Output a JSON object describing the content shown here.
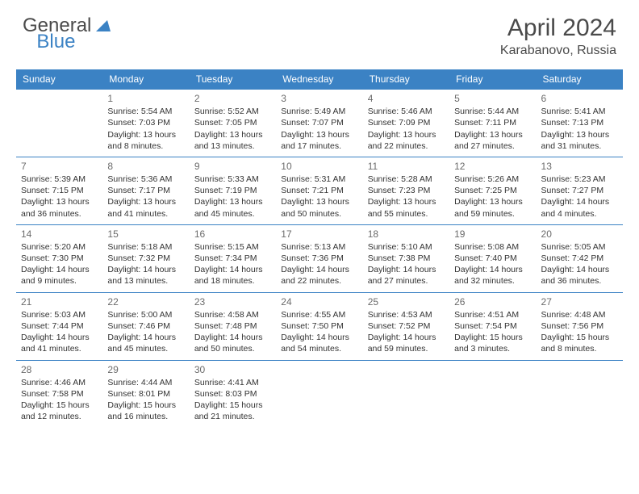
{
  "logo": {
    "general": "General",
    "blue": "Blue"
  },
  "title": "April 2024",
  "location": "Karabanovo, Russia",
  "header_bg": "#3b82c4",
  "header_fg": "#ffffff",
  "border_color": "#3b82c4",
  "day_headers": [
    "Sunday",
    "Monday",
    "Tuesday",
    "Wednesday",
    "Thursday",
    "Friday",
    "Saturday"
  ],
  "weeks": [
    [
      null,
      {
        "n": "1",
        "sr": "Sunrise: 5:54 AM",
        "ss": "Sunset: 7:03 PM",
        "d1": "Daylight: 13 hours",
        "d2": "and 8 minutes."
      },
      {
        "n": "2",
        "sr": "Sunrise: 5:52 AM",
        "ss": "Sunset: 7:05 PM",
        "d1": "Daylight: 13 hours",
        "d2": "and 13 minutes."
      },
      {
        "n": "3",
        "sr": "Sunrise: 5:49 AM",
        "ss": "Sunset: 7:07 PM",
        "d1": "Daylight: 13 hours",
        "d2": "and 17 minutes."
      },
      {
        "n": "4",
        "sr": "Sunrise: 5:46 AM",
        "ss": "Sunset: 7:09 PM",
        "d1": "Daylight: 13 hours",
        "d2": "and 22 minutes."
      },
      {
        "n": "5",
        "sr": "Sunrise: 5:44 AM",
        "ss": "Sunset: 7:11 PM",
        "d1": "Daylight: 13 hours",
        "d2": "and 27 minutes."
      },
      {
        "n": "6",
        "sr": "Sunrise: 5:41 AM",
        "ss": "Sunset: 7:13 PM",
        "d1": "Daylight: 13 hours",
        "d2": "and 31 minutes."
      }
    ],
    [
      {
        "n": "7",
        "sr": "Sunrise: 5:39 AM",
        "ss": "Sunset: 7:15 PM",
        "d1": "Daylight: 13 hours",
        "d2": "and 36 minutes."
      },
      {
        "n": "8",
        "sr": "Sunrise: 5:36 AM",
        "ss": "Sunset: 7:17 PM",
        "d1": "Daylight: 13 hours",
        "d2": "and 41 minutes."
      },
      {
        "n": "9",
        "sr": "Sunrise: 5:33 AM",
        "ss": "Sunset: 7:19 PM",
        "d1": "Daylight: 13 hours",
        "d2": "and 45 minutes."
      },
      {
        "n": "10",
        "sr": "Sunrise: 5:31 AM",
        "ss": "Sunset: 7:21 PM",
        "d1": "Daylight: 13 hours",
        "d2": "and 50 minutes."
      },
      {
        "n": "11",
        "sr": "Sunrise: 5:28 AM",
        "ss": "Sunset: 7:23 PM",
        "d1": "Daylight: 13 hours",
        "d2": "and 55 minutes."
      },
      {
        "n": "12",
        "sr": "Sunrise: 5:26 AM",
        "ss": "Sunset: 7:25 PM",
        "d1": "Daylight: 13 hours",
        "d2": "and 59 minutes."
      },
      {
        "n": "13",
        "sr": "Sunrise: 5:23 AM",
        "ss": "Sunset: 7:27 PM",
        "d1": "Daylight: 14 hours",
        "d2": "and 4 minutes."
      }
    ],
    [
      {
        "n": "14",
        "sr": "Sunrise: 5:20 AM",
        "ss": "Sunset: 7:30 PM",
        "d1": "Daylight: 14 hours",
        "d2": "and 9 minutes."
      },
      {
        "n": "15",
        "sr": "Sunrise: 5:18 AM",
        "ss": "Sunset: 7:32 PM",
        "d1": "Daylight: 14 hours",
        "d2": "and 13 minutes."
      },
      {
        "n": "16",
        "sr": "Sunrise: 5:15 AM",
        "ss": "Sunset: 7:34 PM",
        "d1": "Daylight: 14 hours",
        "d2": "and 18 minutes."
      },
      {
        "n": "17",
        "sr": "Sunrise: 5:13 AM",
        "ss": "Sunset: 7:36 PM",
        "d1": "Daylight: 14 hours",
        "d2": "and 22 minutes."
      },
      {
        "n": "18",
        "sr": "Sunrise: 5:10 AM",
        "ss": "Sunset: 7:38 PM",
        "d1": "Daylight: 14 hours",
        "d2": "and 27 minutes."
      },
      {
        "n": "19",
        "sr": "Sunrise: 5:08 AM",
        "ss": "Sunset: 7:40 PM",
        "d1": "Daylight: 14 hours",
        "d2": "and 32 minutes."
      },
      {
        "n": "20",
        "sr": "Sunrise: 5:05 AM",
        "ss": "Sunset: 7:42 PM",
        "d1": "Daylight: 14 hours",
        "d2": "and 36 minutes."
      }
    ],
    [
      {
        "n": "21",
        "sr": "Sunrise: 5:03 AM",
        "ss": "Sunset: 7:44 PM",
        "d1": "Daylight: 14 hours",
        "d2": "and 41 minutes."
      },
      {
        "n": "22",
        "sr": "Sunrise: 5:00 AM",
        "ss": "Sunset: 7:46 PM",
        "d1": "Daylight: 14 hours",
        "d2": "and 45 minutes."
      },
      {
        "n": "23",
        "sr": "Sunrise: 4:58 AM",
        "ss": "Sunset: 7:48 PM",
        "d1": "Daylight: 14 hours",
        "d2": "and 50 minutes."
      },
      {
        "n": "24",
        "sr": "Sunrise: 4:55 AM",
        "ss": "Sunset: 7:50 PM",
        "d1": "Daylight: 14 hours",
        "d2": "and 54 minutes."
      },
      {
        "n": "25",
        "sr": "Sunrise: 4:53 AM",
        "ss": "Sunset: 7:52 PM",
        "d1": "Daylight: 14 hours",
        "d2": "and 59 minutes."
      },
      {
        "n": "26",
        "sr": "Sunrise: 4:51 AM",
        "ss": "Sunset: 7:54 PM",
        "d1": "Daylight: 15 hours",
        "d2": "and 3 minutes."
      },
      {
        "n": "27",
        "sr": "Sunrise: 4:48 AM",
        "ss": "Sunset: 7:56 PM",
        "d1": "Daylight: 15 hours",
        "d2": "and 8 minutes."
      }
    ],
    [
      {
        "n": "28",
        "sr": "Sunrise: 4:46 AM",
        "ss": "Sunset: 7:58 PM",
        "d1": "Daylight: 15 hours",
        "d2": "and 12 minutes."
      },
      {
        "n": "29",
        "sr": "Sunrise: 4:44 AM",
        "ss": "Sunset: 8:01 PM",
        "d1": "Daylight: 15 hours",
        "d2": "and 16 minutes."
      },
      {
        "n": "30",
        "sr": "Sunrise: 4:41 AM",
        "ss": "Sunset: 8:03 PM",
        "d1": "Daylight: 15 hours",
        "d2": "and 21 minutes."
      },
      null,
      null,
      null,
      null
    ]
  ]
}
